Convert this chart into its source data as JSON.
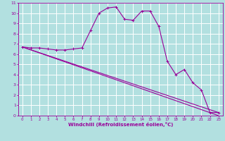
{
  "xlabel": "Windchill (Refroidissement éolien,°C)",
  "bg_color": "#b2e0e0",
  "line_color": "#990099",
  "grid_color": "#ffffff",
  "xlim": [
    -0.5,
    23.5
  ],
  "ylim": [
    0,
    11
  ],
  "xticks": [
    0,
    1,
    2,
    3,
    4,
    5,
    6,
    7,
    8,
    9,
    10,
    11,
    12,
    13,
    14,
    15,
    16,
    17,
    18,
    19,
    20,
    21,
    22,
    23
  ],
  "yticks": [
    0,
    1,
    2,
    3,
    4,
    5,
    6,
    7,
    8,
    9,
    10,
    11
  ],
  "line1_x": [
    0,
    1,
    2,
    3,
    4,
    5,
    6,
    7,
    8,
    9,
    10,
    11,
    12,
    13,
    14,
    15,
    16,
    17,
    18,
    19,
    20,
    21,
    22,
    23
  ],
  "line1_y": [
    6.7,
    6.6,
    6.6,
    6.5,
    6.4,
    6.4,
    6.5,
    6.6,
    8.3,
    10.0,
    10.5,
    10.6,
    9.4,
    9.3,
    10.2,
    10.2,
    8.7,
    5.3,
    4.0,
    4.5,
    3.2,
    2.5,
    0.3,
    0.3
  ],
  "line2_x": [
    0,
    23
  ],
  "line2_y": [
    6.7,
    0.3
  ],
  "line3_x": [
    0,
    23
  ],
  "line3_y": [
    6.7,
    0.0
  ]
}
